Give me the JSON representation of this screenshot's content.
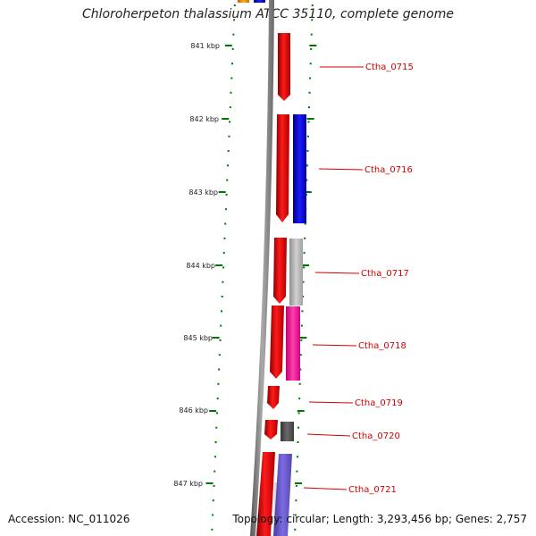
{
  "title": "Chloroherpeton thalassium ATCC 35110, complete genome",
  "footer": {
    "accession": "Accession: NC_011026",
    "summary": "Topology: circular; Length: 3,293,456 bp; Genes: 2,757"
  },
  "ticks": [
    "841 kbp",
    "842 kbp",
    "843 kbp",
    "844 kbp",
    "845 kbp",
    "846 kbp",
    "847 kbp"
  ],
  "genes": [
    {
      "label": "Ctha_0715",
      "color": "#ee0000"
    },
    {
      "label": "Ctha_0716",
      "color": "#ee0000"
    },
    {
      "label": "Ctha_0717",
      "color": "#ee0000"
    },
    {
      "label": "Ctha_0718",
      "color": "#ee0000"
    },
    {
      "label": "Ctha_0719",
      "color": "#ee0000"
    },
    {
      "label": "Ctha_0720",
      "color": "#ee0000"
    },
    {
      "label": "Ctha_0721",
      "color": "#ee0000"
    }
  ],
  "colors": {
    "cds": "#ee0000",
    "blue": "#0000ee",
    "light_gray": "#b8b8b8",
    "magenta": "#ff2aa8",
    "dark_gray": "#555555",
    "purple": "#6a5acd",
    "orange": "#ff9900",
    "tick": "#007700",
    "backbone": "#808080"
  }
}
